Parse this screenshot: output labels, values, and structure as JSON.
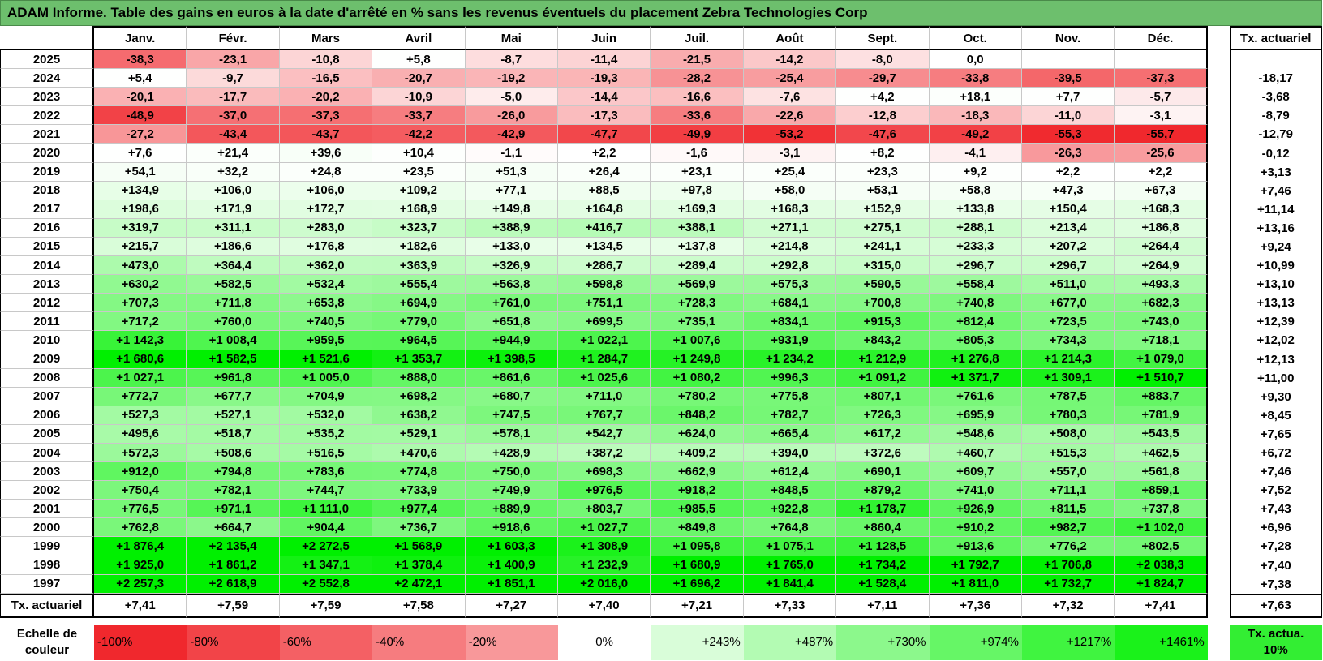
{
  "title": "ADAM Informe. Table des gains en euros à la date d'arrêté en % sans les revenus éventuels du placement Zebra Technologies Corp",
  "columns": [
    "Janv.",
    "Févr.",
    "Mars",
    "Avril",
    "Mai",
    "Juin",
    "Juil.",
    "Août",
    "Sept.",
    "Oct.",
    "Nov.",
    "Déc."
  ],
  "rate_header": "Tx. actuariel",
  "rows": [
    {
      "year": "2025",
      "cells": [
        "-38,3",
        "-23,1",
        "-10,8",
        "+5,8",
        "-8,7",
        "-11,4",
        "-21,5",
        "-14,2",
        "-8,0",
        "0,0",
        null,
        null
      ],
      "rate": null
    },
    {
      "year": "2024",
      "cells": [
        "+5,4",
        "-9,7",
        "-16,5",
        "-20,7",
        "-19,2",
        "-19,3",
        "-28,2",
        "-25,4",
        "-29,7",
        "-33,8",
        "-39,5",
        "-37,3"
      ],
      "rate": "-18,17"
    },
    {
      "year": "2023",
      "cells": [
        "-20,1",
        "-17,7",
        "-20,2",
        "-10,9",
        "-5,0",
        "-14,4",
        "-16,6",
        "-7,6",
        "+4,2",
        "+18,1",
        "+7,7",
        "-5,7"
      ],
      "rate": "-3,68"
    },
    {
      "year": "2022",
      "cells": [
        "-48,9",
        "-37,0",
        "-37,3",
        "-33,7",
        "-26,0",
        "-17,3",
        "-33,6",
        "-22,6",
        "-12,8",
        "-18,3",
        "-11,0",
        "-3,1"
      ],
      "rate": "-8,79"
    },
    {
      "year": "2021",
      "cells": [
        "-27,2",
        "-43,4",
        "-43,7",
        "-42,2",
        "-42,9",
        "-47,7",
        "-49,9",
        "-53,2",
        "-47,6",
        "-49,2",
        "-55,3",
        "-55,7"
      ],
      "rate": "-12,79"
    },
    {
      "year": "2020",
      "cells": [
        "+7,6",
        "+21,4",
        "+39,6",
        "+10,4",
        "-1,1",
        "+2,2",
        "-1,6",
        "-3,1",
        "+8,2",
        "-4,1",
        "-26,3",
        "-25,6"
      ],
      "rate": "-0,12"
    },
    {
      "year": "2019",
      "cells": [
        "+54,1",
        "+32,2",
        "+24,8",
        "+23,5",
        "+51,3",
        "+26,4",
        "+23,1",
        "+25,4",
        "+23,3",
        "+9,2",
        "+2,2",
        "+2,2"
      ],
      "rate": "+3,13"
    },
    {
      "year": "2018",
      "cells": [
        "+134,9",
        "+106,0",
        "+106,0",
        "+109,2",
        "+77,1",
        "+88,5",
        "+97,8",
        "+58,0",
        "+53,1",
        "+58,8",
        "+47,3",
        "+67,3"
      ],
      "rate": "+7,46"
    },
    {
      "year": "2017",
      "cells": [
        "+198,6",
        "+171,9",
        "+172,7",
        "+168,9",
        "+149,8",
        "+164,8",
        "+169,3",
        "+168,3",
        "+152,9",
        "+133,8",
        "+150,4",
        "+168,3"
      ],
      "rate": "+11,14"
    },
    {
      "year": "2016",
      "cells": [
        "+319,7",
        "+311,1",
        "+283,0",
        "+323,7",
        "+388,9",
        "+416,7",
        "+388,1",
        "+271,1",
        "+275,1",
        "+288,1",
        "+213,4",
        "+186,8"
      ],
      "rate": "+13,16"
    },
    {
      "year": "2015",
      "cells": [
        "+215,7",
        "+186,6",
        "+176,8",
        "+182,6",
        "+133,0",
        "+134,5",
        "+137,8",
        "+214,8",
        "+241,1",
        "+233,3",
        "+207,2",
        "+264,4"
      ],
      "rate": "+9,24"
    },
    {
      "year": "2014",
      "cells": [
        "+473,0",
        "+364,4",
        "+362,0",
        "+363,9",
        "+326,9",
        "+286,7",
        "+289,4",
        "+292,8",
        "+315,0",
        "+296,7",
        "+296,7",
        "+264,9"
      ],
      "rate": "+10,99"
    },
    {
      "year": "2013",
      "cells": [
        "+630,2",
        "+582,5",
        "+532,4",
        "+555,4",
        "+563,8",
        "+598,8",
        "+569,9",
        "+575,3",
        "+590,5",
        "+558,4",
        "+511,0",
        "+493,3"
      ],
      "rate": "+13,10"
    },
    {
      "year": "2012",
      "cells": [
        "+707,3",
        "+711,8",
        "+653,8",
        "+694,9",
        "+761,0",
        "+751,1",
        "+728,3",
        "+684,1",
        "+700,8",
        "+740,8",
        "+677,0",
        "+682,3"
      ],
      "rate": "+13,13"
    },
    {
      "year": "2011",
      "cells": [
        "+717,2",
        "+760,0",
        "+740,5",
        "+779,0",
        "+651,8",
        "+699,5",
        "+735,1",
        "+834,1",
        "+915,3",
        "+812,4",
        "+723,5",
        "+743,0"
      ],
      "rate": "+12,39"
    },
    {
      "year": "2010",
      "cells": [
        "+1 142,3",
        "+1 008,4",
        "+959,5",
        "+964,5",
        "+944,9",
        "+1 022,1",
        "+1 007,6",
        "+931,9",
        "+843,2",
        "+805,3",
        "+734,3",
        "+718,1"
      ],
      "rate": "+12,02"
    },
    {
      "year": "2009",
      "cells": [
        "+1 680,6",
        "+1 582,5",
        "+1 521,6",
        "+1 353,7",
        "+1 398,5",
        "+1 284,7",
        "+1 249,8",
        "+1 234,2",
        "+1 212,9",
        "+1 276,8",
        "+1 214,3",
        "+1 079,0"
      ],
      "rate": "+12,13"
    },
    {
      "year": "2008",
      "cells": [
        "+1 027,1",
        "+961,8",
        "+1 005,0",
        "+888,0",
        "+861,6",
        "+1 025,6",
        "+1 080,2",
        "+996,3",
        "+1 091,2",
        "+1 371,7",
        "+1 309,1",
        "+1 510,7"
      ],
      "rate": "+11,00"
    },
    {
      "year": "2007",
      "cells": [
        "+772,7",
        "+677,7",
        "+704,9",
        "+698,2",
        "+680,7",
        "+711,0",
        "+780,2",
        "+775,8",
        "+807,1",
        "+761,6",
        "+787,5",
        "+883,7"
      ],
      "rate": "+9,30"
    },
    {
      "year": "2006",
      "cells": [
        "+527,3",
        "+527,1",
        "+532,0",
        "+638,2",
        "+747,5",
        "+767,7",
        "+848,2",
        "+782,7",
        "+726,3",
        "+695,9",
        "+780,3",
        "+781,9"
      ],
      "rate": "+8,45"
    },
    {
      "year": "2005",
      "cells": [
        "+495,6",
        "+518,7",
        "+535,2",
        "+529,1",
        "+578,1",
        "+542,7",
        "+624,0",
        "+665,4",
        "+617,2",
        "+548,6",
        "+508,0",
        "+543,5"
      ],
      "rate": "+7,65"
    },
    {
      "year": "2004",
      "cells": [
        "+572,3",
        "+508,6",
        "+516,5",
        "+470,6",
        "+428,9",
        "+387,2",
        "+409,2",
        "+394,0",
        "+372,6",
        "+460,7",
        "+515,3",
        "+462,5"
      ],
      "rate": "+6,72"
    },
    {
      "year": "2003",
      "cells": [
        "+912,0",
        "+794,8",
        "+783,6",
        "+774,8",
        "+750,0",
        "+698,3",
        "+662,9",
        "+612,4",
        "+690,1",
        "+609,7",
        "+557,0",
        "+561,8"
      ],
      "rate": "+7,46"
    },
    {
      "year": "2002",
      "cells": [
        "+750,4",
        "+782,1",
        "+744,7",
        "+733,9",
        "+749,9",
        "+976,5",
        "+918,2",
        "+848,5",
        "+879,2",
        "+741,0",
        "+711,1",
        "+859,1"
      ],
      "rate": "+7,52"
    },
    {
      "year": "2001",
      "cells": [
        "+776,5",
        "+971,1",
        "+1 111,0",
        "+977,4",
        "+889,9",
        "+803,7",
        "+985,5",
        "+922,8",
        "+1 178,7",
        "+926,9",
        "+811,5",
        "+737,8"
      ],
      "rate": "+7,43"
    },
    {
      "year": "2000",
      "cells": [
        "+762,8",
        "+664,7",
        "+904,4",
        "+736,7",
        "+918,6",
        "+1 027,7",
        "+849,8",
        "+764,8",
        "+860,4",
        "+910,2",
        "+982,7",
        "+1 102,0"
      ],
      "rate": "+6,96"
    },
    {
      "year": "1999",
      "cells": [
        "+1 876,4",
        "+2 135,4",
        "+2 272,5",
        "+1 568,9",
        "+1 603,3",
        "+1 308,9",
        "+1 095,8",
        "+1 075,1",
        "+1 128,5",
        "+913,6",
        "+776,2",
        "+802,5"
      ],
      "rate": "+7,28"
    },
    {
      "year": "1998",
      "cells": [
        "+1 925,0",
        "+1 861,2",
        "+1 347,1",
        "+1 378,4",
        "+1 400,9",
        "+1 232,9",
        "+1 680,9",
        "+1 765,0",
        "+1 734,2",
        "+1 792,7",
        "+1 706,8",
        "+2 038,3"
      ],
      "rate": "+7,40"
    },
    {
      "year": "1997",
      "cells": [
        "+2 257,3",
        "+2 618,9",
        "+2 552,8",
        "+2 472,1",
        "+1 851,1",
        "+2 016,0",
        "+1 696,2",
        "+1 841,4",
        "+1 528,4",
        "+1 811,0",
        "+1 732,7",
        "+1 824,7"
      ],
      "rate": "+7,38"
    }
  ],
  "footer": {
    "label": "Tx. actuariel",
    "cells": [
      "+7,41",
      "+7,59",
      "+7,59",
      "+7,58",
      "+7,27",
      "+7,40",
      "+7,21",
      "+7,33",
      "+7,11",
      "+7,36",
      "+7,32",
      "+7,41"
    ],
    "rate": "+7,63"
  },
  "scale": {
    "label": "Echelle de couleur",
    "steps": [
      "-100%",
      "-80%",
      "-60%",
      "-40%",
      "-20%",
      "0%",
      "+243%",
      "+487%",
      "+730%",
      "+974%",
      "+1217%",
      "+1461%"
    ],
    "rate_label": "Tx. actua. 10%"
  }
}
